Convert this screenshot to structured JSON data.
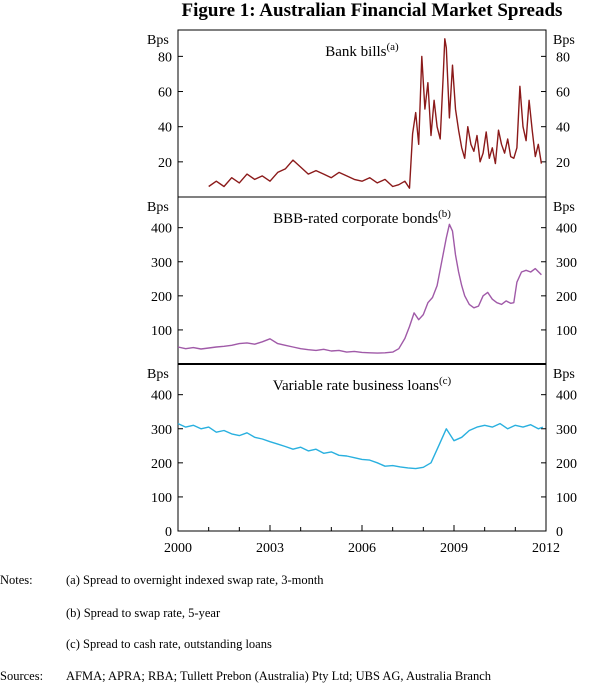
{
  "title": "Figure 1: Australian Financial Market Spreads",
  "chart_data": [
    {
      "type": "line",
      "title": "Bank bills",
      "title_note": "(a)",
      "ylabel": "Bps",
      "ylim": [
        0,
        95
      ],
      "yticks": [
        20,
        40,
        60,
        80
      ],
      "color": "#8b1a1a",
      "x": [
        2001.0,
        2001.25,
        2001.5,
        2001.75,
        2002.0,
        2002.25,
        2002.5,
        2002.75,
        2003.0,
        2003.25,
        2003.5,
        2003.75,
        2004.0,
        2004.25,
        2004.5,
        2004.75,
        2005.0,
        2005.25,
        2005.5,
        2005.75,
        2006.0,
        2006.25,
        2006.5,
        2006.75,
        2007.0,
        2007.2,
        2007.4,
        2007.55,
        2007.65,
        2007.75,
        2007.85,
        2007.95,
        2008.05,
        2008.15,
        2008.25,
        2008.35,
        2008.45,
        2008.55,
        2008.65,
        2008.7,
        2008.75,
        2008.85,
        2008.95,
        2009.05,
        2009.15,
        2009.25,
        2009.35,
        2009.45,
        2009.55,
        2009.65,
        2009.75,
        2009.85,
        2009.95,
        2010.05,
        2010.15,
        2010.25,
        2010.35,
        2010.45,
        2010.55,
        2010.65,
        2010.75,
        2010.85,
        2010.95,
        2011.05,
        2011.15,
        2011.25,
        2011.35,
        2011.45,
        2011.55,
        2011.65,
        2011.75,
        2011.85
      ],
      "values": [
        6,
        9,
        6,
        11,
        8,
        13,
        10,
        12,
        9,
        14,
        16,
        21,
        17,
        13,
        15,
        13,
        11,
        14,
        12,
        10,
        9,
        11,
        8,
        10,
        6,
        7,
        9,
        5,
        36,
        48,
        30,
        80,
        50,
        65,
        35,
        55,
        40,
        33,
        70,
        90,
        85,
        45,
        75,
        50,
        38,
        28,
        22,
        40,
        30,
        26,
        35,
        20,
        25,
        37,
        22,
        28,
        19,
        38,
        30,
        25,
        33,
        23,
        22,
        28,
        63,
        40,
        32,
        55,
        38,
        23,
        30,
        19
      ]
    },
    {
      "type": "line",
      "title": "BBB-rated corporate bonds",
      "title_note": "(b)",
      "ylabel": "Bps",
      "ylim": [
        0,
        490
      ],
      "yticks": [
        100,
        200,
        300,
        400
      ],
      "color": "#a05aa8",
      "x": [
        2000.0,
        2000.25,
        2000.5,
        2000.75,
        2001.0,
        2001.25,
        2001.5,
        2001.75,
        2002.0,
        2002.25,
        2002.5,
        2002.75,
        2003.0,
        2003.25,
        2003.5,
        2003.75,
        2004.0,
        2004.25,
        2004.5,
        2004.75,
        2005.0,
        2005.25,
        2005.5,
        2005.75,
        2006.0,
        2006.25,
        2006.5,
        2006.75,
        2007.0,
        2007.2,
        2007.4,
        2007.55,
        2007.7,
        2007.85,
        2008.0,
        2008.15,
        2008.3,
        2008.45,
        2008.6,
        2008.75,
        2008.85,
        2008.95,
        2009.05,
        2009.15,
        2009.25,
        2009.35,
        2009.5,
        2009.65,
        2009.8,
        2009.95,
        2010.1,
        2010.25,
        2010.4,
        2010.55,
        2010.7,
        2010.85,
        2010.95,
        2011.05,
        2011.2,
        2011.35,
        2011.5,
        2011.65,
        2011.85
      ],
      "values": [
        50,
        45,
        48,
        44,
        47,
        50,
        52,
        55,
        60,
        62,
        58,
        65,
        74,
        60,
        55,
        50,
        45,
        42,
        40,
        43,
        38,
        40,
        35,
        37,
        34,
        33,
        32,
        33,
        35,
        45,
        75,
        110,
        150,
        130,
        145,
        180,
        195,
        230,
        300,
        370,
        410,
        390,
        320,
        270,
        230,
        200,
        175,
        165,
        170,
        200,
        210,
        190,
        180,
        175,
        185,
        178,
        180,
        240,
        270,
        275,
        270,
        280,
        262
      ]
    },
    {
      "type": "line",
      "title": "Variable rate business loans",
      "title_note": "(c)",
      "ylabel": "Bps",
      "ylim": [
        0,
        490
      ],
      "yticks": [
        0,
        100,
        200,
        300,
        400
      ],
      "color": "#29b0df",
      "x": [
        2000.0,
        2000.25,
        2000.5,
        2000.75,
        2001.0,
        2001.25,
        2001.5,
        2001.75,
        2002.0,
        2002.25,
        2002.5,
        2002.75,
        2003.0,
        2003.25,
        2003.5,
        2003.75,
        2004.0,
        2004.25,
        2004.5,
        2004.75,
        2005.0,
        2005.25,
        2005.5,
        2005.75,
        2006.0,
        2006.25,
        2006.5,
        2006.75,
        2007.0,
        2007.25,
        2007.5,
        2007.75,
        2008.0,
        2008.25,
        2008.5,
        2008.75,
        2009.0,
        2009.25,
        2009.5,
        2009.75,
        2010.0,
        2010.25,
        2010.5,
        2010.75,
        2011.0,
        2011.25,
        2011.5,
        2011.75,
        2011.9
      ],
      "values": [
        315,
        305,
        310,
        300,
        305,
        290,
        295,
        285,
        280,
        288,
        275,
        270,
        262,
        255,
        248,
        240,
        246,
        235,
        240,
        228,
        232,
        222,
        220,
        215,
        210,
        208,
        200,
        190,
        192,
        188,
        185,
        183,
        187,
        200,
        250,
        300,
        265,
        275,
        295,
        305,
        310,
        305,
        315,
        300,
        310,
        305,
        312,
        300,
        305
      ],
      "xlim": [
        2000,
        2012
      ],
      "xticks": [
        2000,
        2003,
        2006,
        2009,
        2012
      ]
    }
  ],
  "notes_label": "Notes:",
  "notes": [
    "(a) Spread to overnight indexed swap rate, 3-month",
    "(b) Spread to swap rate, 5-year",
    "(c) Spread to cash rate, outstanding loans"
  ],
  "sources_label": "Sources:",
  "sources": "AFMA; APRA; RBA; Tullett Prebon (Australia) Pty Ltd; UBS AG, Australia Branch"
}
